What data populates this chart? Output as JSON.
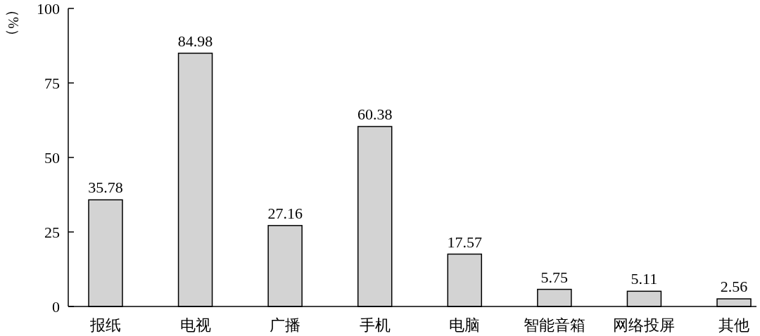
{
  "chart_data": {
    "type": "bar",
    "ylabel": "（%）",
    "categories": [
      "报纸",
      "电视",
      "广播",
      "手机",
      "电脑",
      "智能音箱",
      "网络投屏",
      "其他"
    ],
    "values": [
      35.78,
      84.98,
      27.16,
      60.38,
      17.57,
      5.75,
      5.11,
      2.56
    ],
    "color": "#d3d3d3",
    "ylim": [
      0,
      100
    ],
    "yticks": [
      0,
      25,
      50,
      75,
      100
    ],
    "data_labels": true,
    "grid": false
  }
}
